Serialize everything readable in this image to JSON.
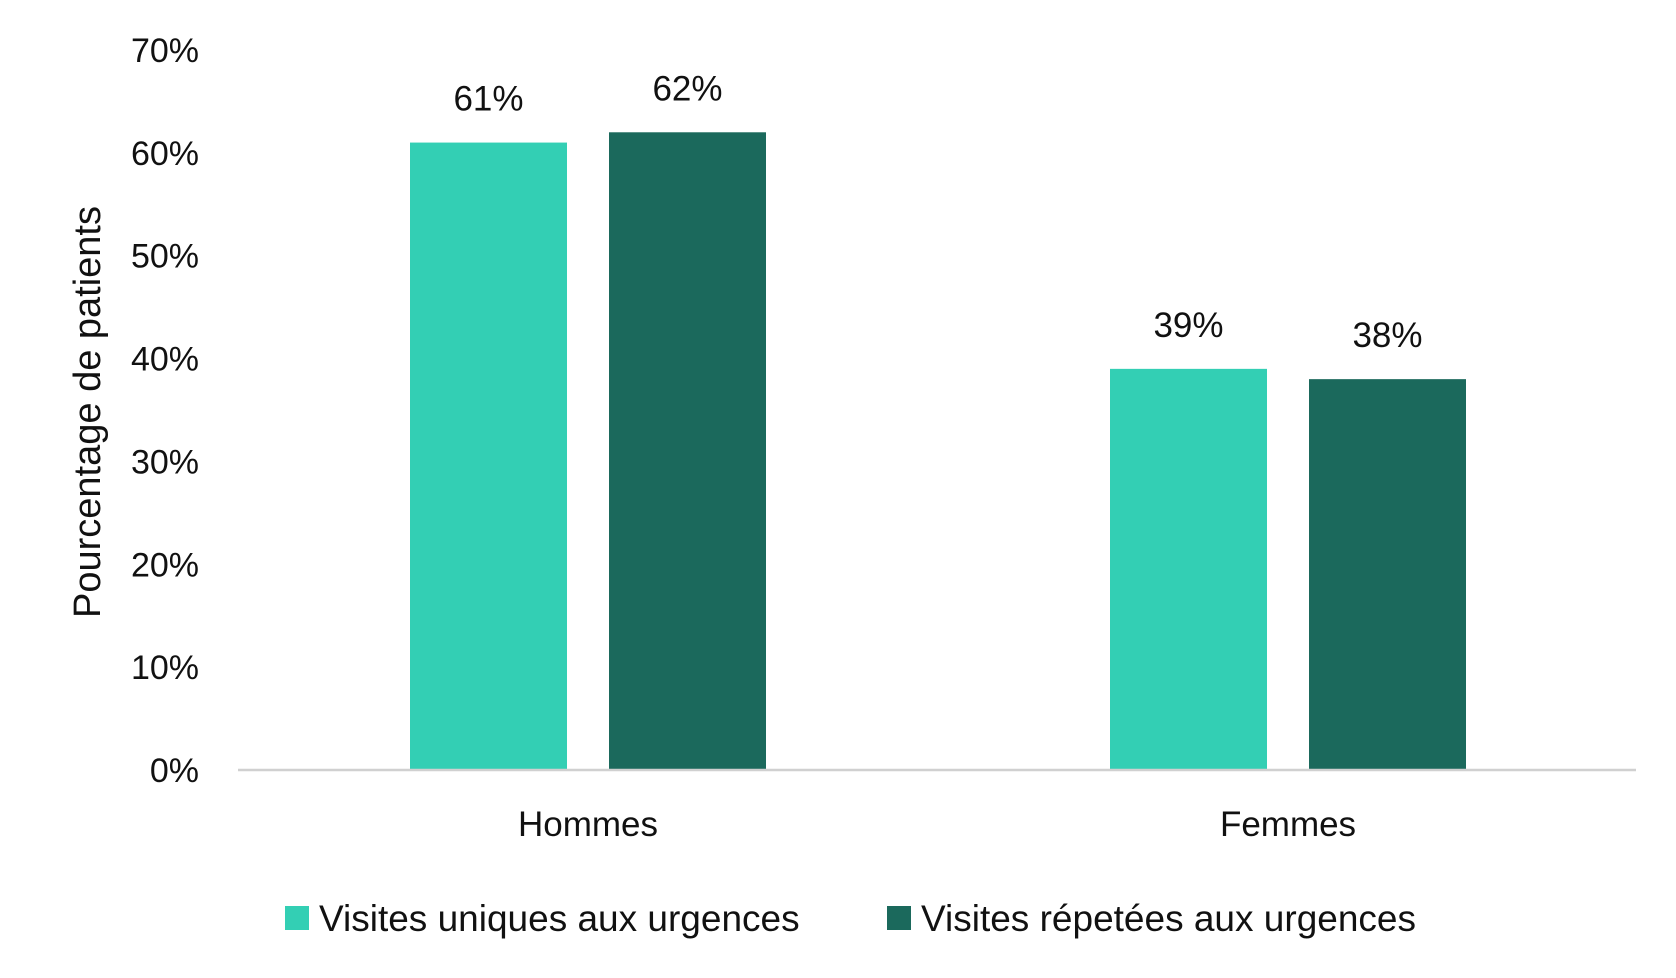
{
  "chart_data": {
    "type": "bar",
    "title": "",
    "xlabel": "",
    "ylabel": "Pourcentage de patients",
    "ylim": [
      0,
      70
    ],
    "yticks": [
      0,
      10,
      20,
      30,
      40,
      50,
      60,
      70
    ],
    "ytick_labels": [
      "0%",
      "10%",
      "20%",
      "30%",
      "40%",
      "50%",
      "60%",
      "70%"
    ],
    "categories": [
      "Hommes",
      "Femmes"
    ],
    "series": [
      {
        "name": "Visites uniques aux urgences",
        "values": [
          61,
          39
        ],
        "labels": [
          "61%",
          "39%"
        ],
        "color": "#33cfb4"
      },
      {
        "name": "Visites répetées aux urgences",
        "values": [
          62,
          38
        ],
        "labels": [
          "62%",
          "38%"
        ],
        "color": "#1b695c"
      }
    ],
    "grid": false,
    "legend": "bottom-center",
    "axis_color": "#d0d0d0"
  }
}
